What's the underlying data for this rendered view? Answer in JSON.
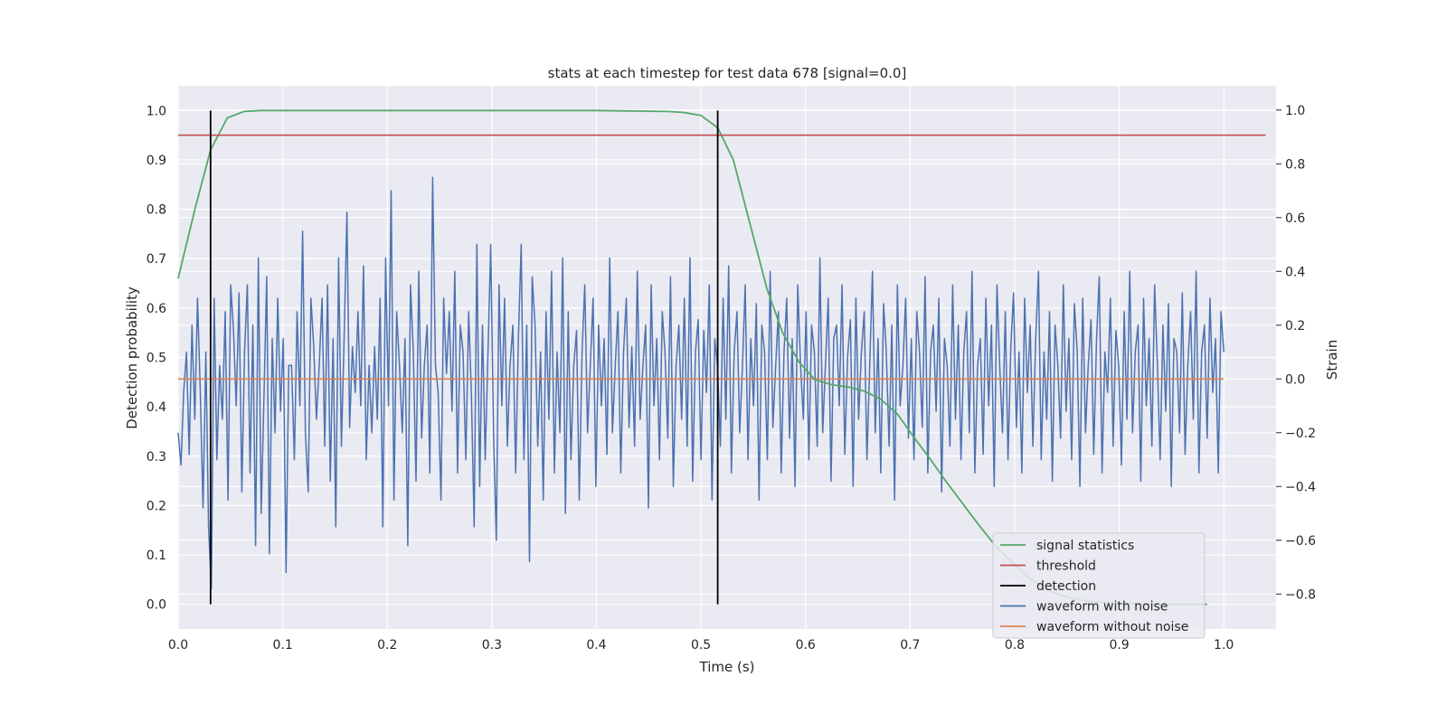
{
  "chart_data": {
    "type": "line",
    "title": "stats at each timestep for test data 678 [signal=0.0]",
    "xlabel": "Time (s)",
    "ylabel": "Detection probability",
    "y2label": "Strain",
    "xlim": [
      0.0,
      1.05
    ],
    "ylim": [
      -0.05,
      1.05
    ],
    "y2lim": [
      -0.93,
      1.09
    ],
    "xticks": [
      "0.0",
      "0.1",
      "0.2",
      "0.3",
      "0.4",
      "0.5",
      "0.6",
      "0.7",
      "0.8",
      "0.9",
      "1.0"
    ],
    "yticks": [
      "0.0",
      "0.1",
      "0.2",
      "0.3",
      "0.4",
      "0.5",
      "0.6",
      "0.7",
      "0.8",
      "0.9",
      "1.0"
    ],
    "y2ticks": [
      "−0.8",
      "−0.6",
      "−0.4",
      "−0.2",
      "0.0",
      "0.2",
      "0.4",
      "0.6",
      "0.8",
      "1.0"
    ],
    "grid": true,
    "legend_position": "bottom-right",
    "background": "#eaeaf2",
    "series": [
      {
        "name": "signal statistics",
        "axis": "left",
        "color": "#55a868",
        "x": [
          0.0,
          0.016,
          0.031,
          0.047,
          0.063,
          0.078,
          0.094,
          0.2,
          0.3,
          0.4,
          0.469,
          0.484,
          0.5,
          0.516,
          0.531,
          0.547,
          0.563,
          0.578,
          0.594,
          0.609,
          0.625,
          0.641,
          0.656,
          0.672,
          0.688,
          0.703,
          0.719,
          0.734,
          0.75,
          0.766,
          0.781,
          0.797,
          0.813,
          0.828,
          0.844,
          0.859,
          0.875,
          0.891,
          0.906,
          0.922,
          0.938,
          0.953,
          0.969,
          0.984
        ],
        "y": [
          0.66,
          0.8,
          0.92,
          0.985,
          0.998,
          1.0,
          1.0,
          1.0,
          1.0,
          1.0,
          0.998,
          0.996,
          0.99,
          0.965,
          0.9,
          0.77,
          0.64,
          0.55,
          0.49,
          0.455,
          0.445,
          0.44,
          0.432,
          0.415,
          0.385,
          0.34,
          0.295,
          0.25,
          0.205,
          0.16,
          0.12,
          0.085,
          0.055,
          0.033,
          0.018,
          0.01,
          0.005,
          0.003,
          0.002,
          0.001,
          0.0,
          0.0,
          0.0,
          0.0
        ]
      },
      {
        "name": "threshold",
        "axis": "left",
        "color": "#c44e52",
        "x": [
          0.0,
          1.04
        ],
        "y": [
          0.95,
          0.95
        ]
      },
      {
        "name": "detection",
        "axis": "left",
        "color": "#000000",
        "type": "vlines",
        "x": [
          0.031,
          0.516
        ],
        "ymin": 0.0,
        "ymax": 1.0
      },
      {
        "name": "waveform with noise",
        "axis": "right",
        "color": "#4c72b0",
        "x_start": 0.0,
        "x_end": 1.0,
        "y": [
          -0.2,
          -0.32,
          -0.05,
          0.1,
          -0.28,
          0.2,
          -0.15,
          0.3,
          -0.05,
          -0.48,
          0.1,
          -0.55,
          -0.78,
          0.3,
          -0.3,
          0.05,
          -0.15,
          0.25,
          -0.45,
          0.35,
          0.18,
          -0.1,
          0.32,
          -0.42,
          0.1,
          0.35,
          -0.35,
          0.2,
          -0.62,
          0.45,
          -0.5,
          -0.08,
          0.38,
          -0.65,
          0.15,
          -0.2,
          0.3,
          -0.12,
          0.15,
          -0.72,
          0.05,
          0.05,
          -0.3,
          0.25,
          -0.1,
          0.55,
          -0.2,
          -0.42,
          0.3,
          0.12,
          -0.15,
          0.05,
          0.3,
          -0.25,
          0.35,
          -0.38,
          0.15,
          -0.55,
          0.45,
          -0.25,
          0.15,
          0.62,
          -0.18,
          0.12,
          -0.05,
          0.25,
          -0.1,
          0.42,
          -0.3,
          0.05,
          -0.2,
          0.12,
          -0.15,
          0.3,
          -0.55,
          0.45,
          -0.1,
          0.7,
          -0.45,
          0.25,
          0.05,
          -0.2,
          0.15,
          -0.62,
          0.35,
          0.1,
          -0.38,
          0.4,
          -0.22,
          0.05,
          0.2,
          -0.35,
          0.75,
          0.05,
          -0.05,
          -0.45,
          0.3,
          0.02,
          0.25,
          -0.12,
          0.4,
          -0.35,
          0.2,
          0.1,
          -0.3,
          0.25,
          -0.05,
          -0.55,
          0.5,
          -0.4,
          0.2,
          -0.3,
          0.1,
          0.5,
          -0.2,
          -0.6,
          0.35,
          -0.1,
          0.3,
          -0.25,
          0.05,
          0.2,
          -0.35,
          0.15,
          0.5,
          -0.3,
          0.2,
          -0.68,
          0.38,
          0.2,
          -0.25,
          0.1,
          -0.45,
          0.25,
          -0.15,
          0.4,
          -0.35,
          0.1,
          -0.2,
          0.45,
          -0.5,
          0.25,
          -0.3,
          0.05,
          0.18,
          -0.45,
          0.1,
          0.35,
          -0.2,
          0.05,
          0.3,
          -0.4,
          0.2,
          -0.1,
          0.15,
          -0.28,
          0.45,
          -0.2,
          0.05,
          0.25,
          -0.35,
          0.1,
          0.3,
          -0.18,
          0.12,
          -0.25,
          0.4,
          -0.15,
          0.05,
          0.2,
          -0.48,
          0.35,
          -0.1,
          0.15,
          -0.3,
          0.25,
          0.1,
          -0.22,
          0.38,
          -0.4,
          0.05,
          0.2,
          -0.15,
          0.3,
          -0.25,
          0.45,
          -0.38,
          0.1,
          0.22,
          -0.3,
          0.18,
          -0.05,
          0.35,
          -0.45,
          0.15,
          0.05,
          -0.25,
          0.3,
          -0.15,
          0.42,
          -0.35,
          0.1,
          0.25,
          -0.2,
          0.05,
          0.35,
          -0.3,
          0.15,
          -0.1,
          0.28,
          -0.45,
          0.2,
          0.1,
          -0.3,
          0.4,
          -0.18,
          0.05,
          0.25,
          -0.35,
          0.1,
          0.3,
          -0.22,
          0.15,
          -0.4,
          0.35,
          0.05,
          -0.15,
          0.25,
          -0.3,
          0.2,
          0.1,
          -0.25,
          0.45,
          -0.2,
          0.05,
          0.3,
          -0.38,
          0.15,
          0.2,
          -0.1,
          0.35,
          -0.28,
          0.08,
          0.22,
          -0.4,
          0.3,
          -0.15,
          0.1,
          0.25,
          -0.3,
          0.05,
          0.4,
          -0.2,
          0.15,
          -0.35,
          0.28,
          0.1,
          -0.25,
          0.2,
          -0.45,
          0.35,
          -0.1,
          0.05,
          0.3,
          -0.22,
          0.15,
          -0.3,
          0.25,
          0.1,
          -0.18,
          0.38,
          -0.35,
          0.1,
          0.2,
          -0.12,
          0.3,
          -0.42,
          0.15,
          0.05,
          -0.25,
          0.35,
          -0.15,
          0.2,
          -0.3,
          0.1,
          0.25,
          -0.2,
          0.4,
          -0.35,
          0.05,
          0.15,
          -0.28,
          0.3,
          -0.1,
          0.2,
          -0.4,
          0.35,
          0.05,
          -0.2,
          0.25,
          -0.3,
          0.12,
          0.32,
          -0.18,
          0.1,
          -0.35,
          0.3,
          -0.05,
          0.2,
          -0.25,
          0.15,
          0.4,
          -0.3,
          0.1,
          -0.15,
          0.25,
          -0.38,
          0.2,
          0.05,
          -0.22,
          0.35,
          -0.12,
          0.15,
          -0.3,
          0.28,
          0.1,
          -0.4,
          0.3,
          -0.2,
          0.05,
          0.22,
          -0.28,
          0.15,
          0.38,
          -0.35,
          0.1,
          -0.05,
          0.3,
          -0.25,
          0.18,
          0.05,
          -0.32,
          0.25,
          -0.15,
          0.4,
          -0.2,
          0.1,
          0.2,
          -0.38,
          0.3,
          -0.1,
          0.15,
          -0.25,
          0.35,
          0.05,
          -0.3,
          0.2,
          -0.12,
          0.28,
          -0.4,
          0.15,
          0.1,
          -0.2,
          0.32,
          -0.28,
          0.05,
          0.25,
          -0.15,
          0.4,
          -0.35,
          0.1,
          0.2,
          -0.22,
          0.3,
          -0.05,
          0.15,
          -0.35,
          0.25,
          0.1
        ]
      },
      {
        "name": "waveform without noise",
        "axis": "right",
        "color": "#dd8452",
        "x": [
          0.0,
          1.0
        ],
        "y": [
          0.0,
          0.0
        ]
      }
    ]
  }
}
